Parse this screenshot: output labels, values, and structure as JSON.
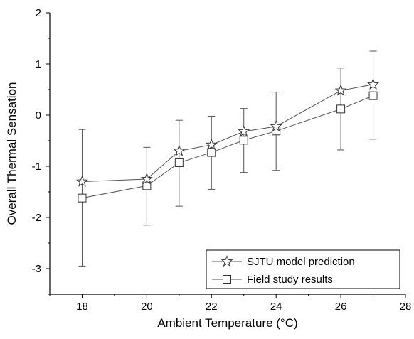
{
  "chart_data": {
    "type": "line",
    "xlabel": "Ambient Temperature (°C)",
    "ylabel": "Overall Thermal Sensation",
    "xlim": [
      17,
      28
    ],
    "ylim": [
      -3.5,
      2
    ],
    "x_ticks": [
      "18",
      "20",
      "22",
      "24",
      "26",
      "28"
    ],
    "y_ticks": [
      "-3",
      "-2",
      "-1",
      "0",
      "1",
      "2"
    ],
    "legend_position": "bottom-right",
    "series": [
      {
        "name": "SJTU model prediction",
        "marker": "star",
        "x": [
          18,
          20,
          21,
          22,
          23,
          24,
          26,
          27
        ],
        "y": [
          -1.3,
          -1.25,
          -0.7,
          -0.58,
          -0.32,
          -0.22,
          0.48,
          0.6
        ]
      },
      {
        "name": "Field study results",
        "marker": "square",
        "x": [
          18,
          20,
          21,
          22,
          23,
          24,
          26,
          27
        ],
        "y": [
          -1.62,
          -1.38,
          -0.93,
          -0.73,
          -0.49,
          -0.31,
          0.12,
          0.38
        ],
        "error_low": [
          -2.95,
          -2.15,
          -1.78,
          -1.45,
          -1.12,
          -1.08,
          -0.68,
          -0.47
        ],
        "error_high": [
          -0.28,
          -0.63,
          -0.1,
          -0.02,
          0.13,
          0.45,
          0.92,
          1.25
        ]
      }
    ]
  }
}
